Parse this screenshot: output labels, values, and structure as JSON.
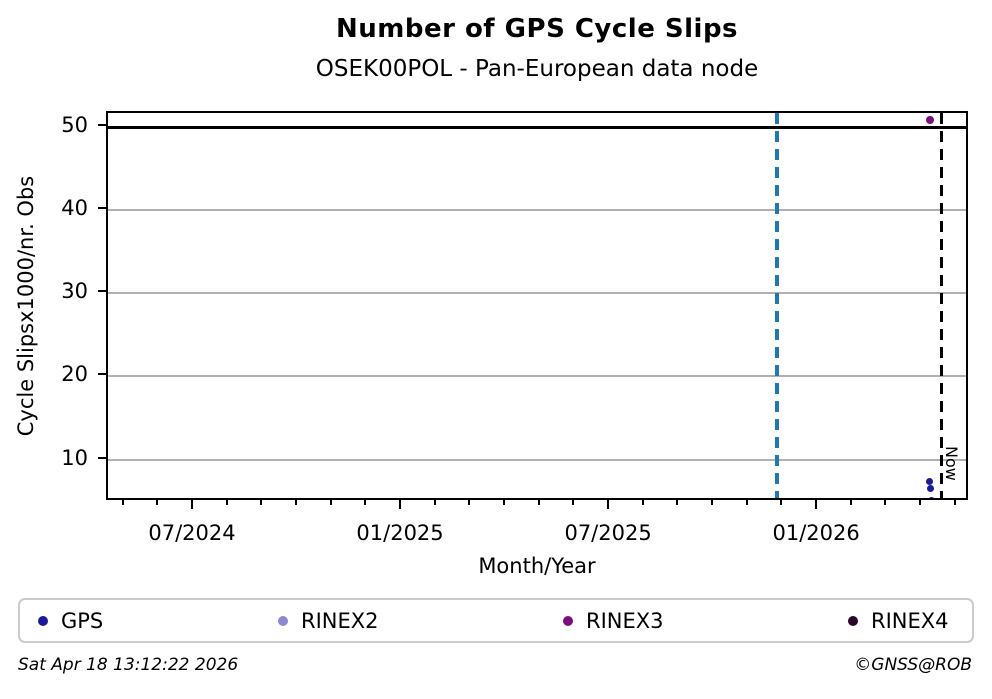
{
  "page": {
    "footer_left": "Sat Apr 18 13:12:22 2026",
    "footer_right": "©GNSS@ROB"
  },
  "chart_data": {
    "type": "scatter",
    "title": "Number of GPS Cycle Slips",
    "subtitle": "OSEK00POL - Pan-European data node",
    "xlabel": "Month/Year",
    "ylabel": "Cycle Slipsx1000/nr. Obs",
    "grid": "horizontal-only",
    "legend_position": "bottom",
    "x_unit": "month_index (0 = 01/2024)",
    "xlim": [
      3.52,
      28.38
    ],
    "ylim": [
      4.9,
      51.7
    ],
    "yticks": [
      10,
      20,
      30,
      40,
      50
    ],
    "xticks_major": [
      {
        "m": 6,
        "label": "07/2024"
      },
      {
        "m": 12,
        "label": "01/2025"
      },
      {
        "m": 18,
        "label": "07/2025"
      },
      {
        "m": 24,
        "label": "01/2026"
      }
    ],
    "xticks_minor": {
      "from": 4,
      "to": 28,
      "step": 1
    },
    "hline": {
      "y": 50,
      "color": "#000000"
    },
    "vlines": [
      {
        "m": 22.82,
        "x_date_approx": "late 11/2025",
        "color": "#1f77b4",
        "style": "dashed",
        "width": 4,
        "label": ""
      },
      {
        "m": 27.57,
        "x_date_approx": "2026-04-18",
        "color": "#000000",
        "style": "dashed",
        "width": 3,
        "label": "Now"
      }
    ],
    "series": [
      {
        "name": "GPS",
        "color": "#1a1a96",
        "marker": 7,
        "points": [
          {
            "m": 27.2,
            "y": 7.4
          },
          {
            "m": 27.23,
            "y": 6.5
          },
          {
            "m": 27.27,
            "y": 5.05
          }
        ],
        "x_date_approx": "early 04/2026"
      },
      {
        "name": "RINEX2",
        "color": "#8a8ace",
        "marker": 7,
        "points": []
      },
      {
        "name": "RINEX3",
        "color": "#7c0e7c",
        "marker": 8,
        "points": [
          {
            "m": 27.23,
            "y": 50.85
          }
        ],
        "x_date_approx": "early 04/2026"
      },
      {
        "name": "RINEX4",
        "color": "#2b062b",
        "marker": 7,
        "points": []
      }
    ],
    "now_label": "Now",
    "grid_color": "#b0b0b0"
  }
}
